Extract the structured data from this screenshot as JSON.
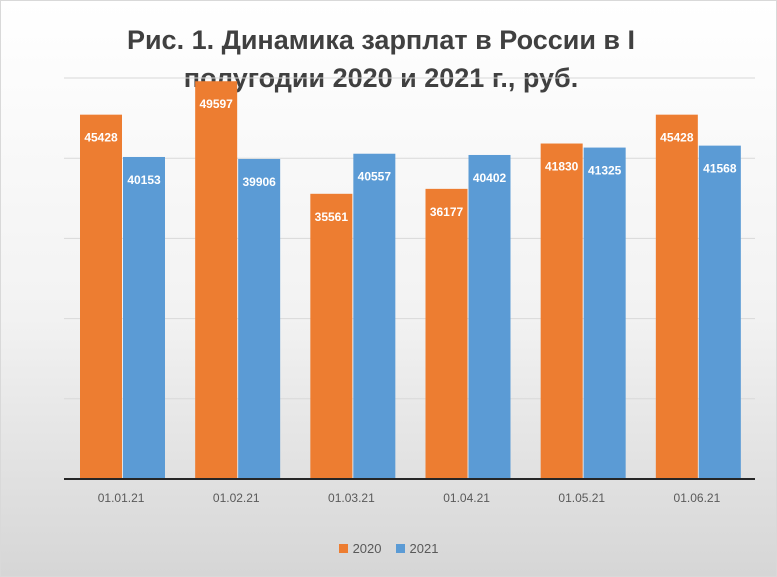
{
  "chart_data": {
    "type": "bar",
    "title": "Рис. 1. Динамика зарплат в России в I полугодии 2020 и 2021 г., руб.",
    "categories": [
      "01.01.21",
      "01.02.21",
      "01.03.21",
      "01.04.21",
      "01.05.21",
      "01.06.21"
    ],
    "series": [
      {
        "name": "2020",
        "color": "#ed7d31",
        "values": [
          45428,
          49597,
          35561,
          36177,
          41830,
          45428
        ]
      },
      {
        "name": "2021",
        "color": "#5b9bd5",
        "values": [
          40153,
          39906,
          40557,
          40402,
          41325,
          41568
        ]
      }
    ],
    "ylim": [
      0,
      50000
    ],
    "y_gridlines": [
      0,
      10000,
      20000,
      30000,
      40000,
      50000
    ],
    "y_tick_labels_visible": false,
    "grid": true,
    "data_labels": true,
    "legend": "bottom"
  }
}
